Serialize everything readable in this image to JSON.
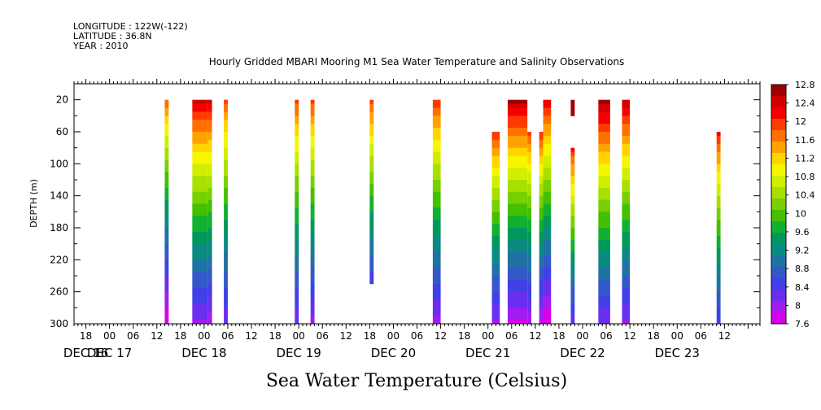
{
  "meta": {
    "longitude": "LONGITUDE : 122W(-122)",
    "latitude": "LATITUDE : 36.8N",
    "year": "YEAR : 2010"
  },
  "chart_data": {
    "type": "heatmap",
    "title": "Hourly Gridded MBARI Mooring M1 Sea Water Temperature and Salinity Observations",
    "xlabel": "",
    "ylabel": "DEPTH (m)",
    "colorbar_title": "Sea Water Temperature (Celsius)",
    "xlim_hours": [
      -9,
      165
    ],
    "ylim": [
      300,
      0
    ],
    "hour_tick_labels": [
      "18",
      "00",
      "06",
      "12",
      "18",
      "00",
      "06",
      "12",
      "18",
      "00",
      "06",
      "12",
      "18",
      "00",
      "06",
      "12",
      "18",
      "00",
      "06",
      "12",
      "18",
      "00",
      "06",
      "12",
      "18",
      "00",
      "06",
      "12"
    ],
    "hour_tick_values": [
      -6,
      0,
      6,
      12,
      18,
      24,
      30,
      36,
      42,
      48,
      54,
      60,
      66,
      72,
      78,
      84,
      90,
      96,
      102,
      108,
      114,
      120,
      126,
      132,
      138,
      144,
      150,
      156
    ],
    "date_labels": [
      {
        "label": "DEC 16",
        "hour": -6
      },
      {
        "label": "DEC 17",
        "hour": 0
      },
      {
        "label": "DEC 18",
        "hour": 24
      },
      {
        "label": "DEC 19",
        "hour": 48
      },
      {
        "label": "DEC 20",
        "hour": 72
      },
      {
        "label": "DEC 21",
        "hour": 96
      },
      {
        "label": "DEC 22",
        "hour": 120
      },
      {
        "label": "DEC 23",
        "hour": 144
      }
    ],
    "depth_tick_values": [
      20,
      60,
      100,
      140,
      180,
      220,
      260,
      300
    ],
    "depth_tick_labels": [
      "20",
      "60",
      "100",
      "140",
      "180",
      "220",
      "260",
      "300"
    ],
    "colorbar_labels": [
      "12.8",
      "12.4",
      "12",
      "11.6",
      "11.2",
      "10.8",
      "10.4",
      "10",
      "9.6",
      "9.2",
      "8.8",
      "8.4",
      "8",
      "7.6"
    ],
    "colorbar_values": [
      12.8,
      12.4,
      12,
      11.6,
      11.2,
      10.8,
      10.4,
      10,
      9.6,
      9.2,
      8.8,
      8.4,
      8,
      7.6
    ],
    "colorbar_colors": [
      "#a00000",
      "#d40000",
      "#f50000",
      "#ff3a00",
      "#ff7000",
      "#ffa200",
      "#ffd400",
      "#f6f600",
      "#d2ee00",
      "#a8e000",
      "#78d000",
      "#44c000",
      "#12b030",
      "#00985c",
      "#0a8a82",
      "#1f72a4",
      "#3358c8",
      "#4040e6",
      "#6a2ef0",
      "#a21cf0",
      "#d800e8"
    ],
    "columns": [
      {
        "t_start": 14,
        "t_end": 15,
        "top": 20,
        "bottom": 300,
        "surface": 11.8,
        "deep": 7.6
      },
      {
        "t_start": 21,
        "t_end": 25,
        "top": 20,
        "bottom": 300,
        "surface": 12.5,
        "deep": 8.0
      },
      {
        "t_start": 25,
        "t_end": 26,
        "top": 20,
        "bottom": 300,
        "surface": 12.5,
        "deep": 7.9
      },
      {
        "t_start": 29,
        "t_end": 30,
        "top": 20,
        "bottom": 300,
        "surface": 11.9,
        "deep": 8.1
      },
      {
        "t_start": 47,
        "t_end": 48,
        "top": 20,
        "bottom": 300,
        "surface": 12.0,
        "deep": 8.1
      },
      {
        "t_start": 51,
        "t_end": 52,
        "top": 20,
        "bottom": 300,
        "surface": 12.0,
        "deep": 8.0
      },
      {
        "t_start": 66,
        "t_end": 67,
        "top": 20,
        "bottom": 250,
        "surface": 12.0,
        "deep": 8.4
      },
      {
        "t_start": 82,
        "t_end": 84,
        "top": 20,
        "bottom": 300,
        "surface": 12.1,
        "deep": 8.0
      },
      {
        "t_start": 97,
        "t_end": 99,
        "top": 60,
        "bottom": 300,
        "surface": 12.1,
        "deep": 8.0
      },
      {
        "t_start": 101,
        "t_end": 106,
        "top": 20,
        "bottom": 300,
        "surface": 12.7,
        "deep": 7.8
      },
      {
        "t_start": 106,
        "t_end": 107,
        "top": 60,
        "bottom": 300,
        "surface": 12.0,
        "deep": 7.9
      },
      {
        "t_start": 109,
        "t_end": 110,
        "top": 60,
        "bottom": 300,
        "surface": 12.1,
        "deep": 7.8
      },
      {
        "t_start": 110,
        "t_end": 112,
        "top": 20,
        "bottom": 300,
        "surface": 12.4,
        "deep": 7.6
      },
      {
        "t_start": 117,
        "t_end": 118,
        "top": 20,
        "bottom": 40,
        "surface": 12.7,
        "deep": 12.6
      },
      {
        "t_start": 117,
        "t_end": 118,
        "top": 80,
        "bottom": 300,
        "surface": 12.2,
        "deep": 8.2
      },
      {
        "t_start": 124,
        "t_end": 127,
        "top": 20,
        "bottom": 300,
        "surface": 12.8,
        "deep": 8.1
      },
      {
        "t_start": 130,
        "t_end": 132,
        "top": 20,
        "bottom": 300,
        "surface": 12.6,
        "deep": 8.0
      },
      {
        "t_start": 154,
        "t_end": 155,
        "top": 60,
        "bottom": 300,
        "surface": 12.2,
        "deep": 8.3
      }
    ]
  }
}
